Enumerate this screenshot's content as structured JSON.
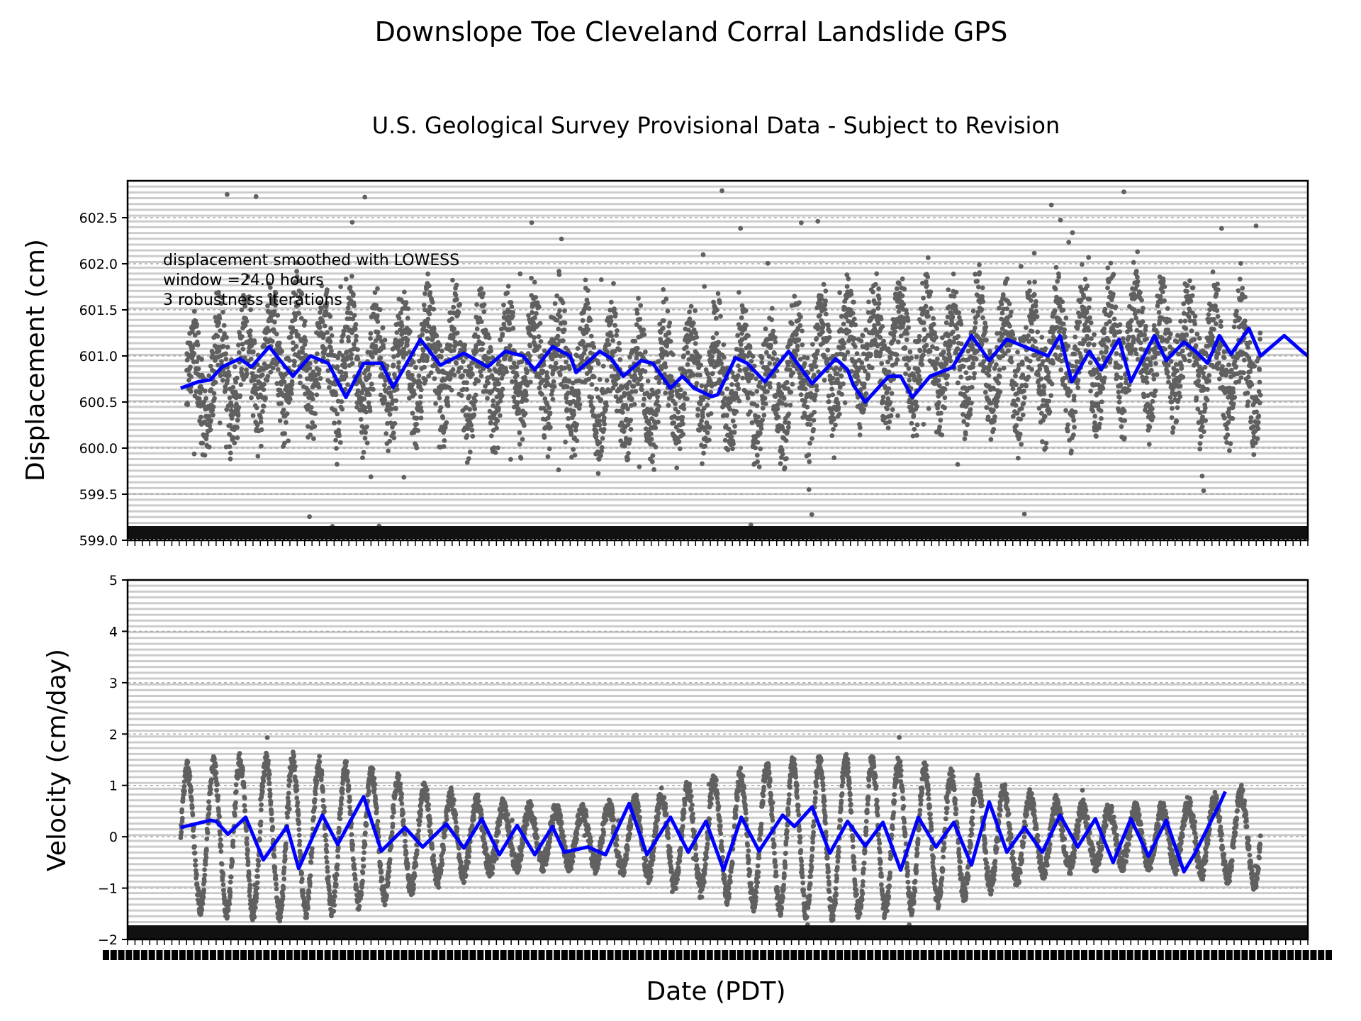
{
  "figure": {
    "title": "Downslope Toe Cleveland Corral Landslide GPS",
    "subtitle": "U.S. Geological Survey Provisional Data - Subject to Revision",
    "xlabel": "Date (PDT)"
  },
  "chart_data": [
    {
      "type": "scatter",
      "ylabel": "Displacement (cm)",
      "ylim": [
        599.0,
        602.9
      ],
      "yticks": [
        599.0,
        599.5,
        600.0,
        600.5,
        601.0,
        601.5,
        602.0,
        602.5
      ],
      "ytick_labels": [
        "599.0",
        "599.5",
        "600.0",
        "600.5",
        "601.0",
        "601.5",
        "602.0",
        "602.5"
      ],
      "grid": true,
      "annotation": [
        "displacement smoothed with LOWESS",
        "window =24.0 hours",
        "3 robustness iterations"
      ],
      "series": [
        {
          "kind": "points",
          "color": "#606060",
          "x_range": [
            0.05,
            0.96
          ],
          "baseline": [
            [
              0.05,
              600.65
            ],
            [
              0.1,
              600.9
            ],
            [
              0.15,
              601.0
            ],
            [
              0.2,
              600.8
            ],
            [
              0.25,
              600.95
            ],
            [
              0.3,
              600.85
            ],
            [
              0.35,
              600.95
            ],
            [
              0.4,
              600.75
            ],
            [
              0.45,
              600.7
            ],
            [
              0.5,
              600.75
            ],
            [
              0.55,
              600.65
            ],
            [
              0.58,
              600.9
            ],
            [
              0.62,
              601.05
            ],
            [
              0.7,
              601.05
            ],
            [
              0.75,
              600.95
            ],
            [
              0.8,
              601.0
            ],
            [
              0.85,
              601.1
            ],
            [
              0.9,
              601.05
            ],
            [
              0.96,
              600.85
            ]
          ],
          "amplitude": 0.55,
          "oscillations": 41
        },
        {
          "kind": "line",
          "color": "#0000ff",
          "points": [
            [
              0.045,
              600.65
            ],
            [
              0.06,
              600.72
            ],
            [
              0.07,
              600.74
            ],
            [
              0.08,
              600.88
            ],
            [
              0.095,
              600.97
            ],
            [
              0.105,
              600.88
            ],
            [
              0.12,
              601.1
            ],
            [
              0.14,
              600.78
            ],
            [
              0.155,
              601.0
            ],
            [
              0.17,
              600.92
            ],
            [
              0.185,
              600.55
            ],
            [
              0.2,
              600.92
            ],
            [
              0.215,
              600.92
            ],
            [
              0.225,
              600.66
            ],
            [
              0.248,
              601.18
            ],
            [
              0.265,
              600.9
            ],
            [
              0.285,
              601.03
            ],
            [
              0.305,
              600.88
            ],
            [
              0.32,
              601.05
            ],
            [
              0.335,
              601.0
            ],
            [
              0.345,
              600.85
            ],
            [
              0.36,
              601.1
            ],
            [
              0.375,
              601.0
            ],
            [
              0.38,
              600.82
            ],
            [
              0.4,
              601.05
            ],
            [
              0.41,
              600.97
            ],
            [
              0.42,
              600.78
            ],
            [
              0.435,
              600.95
            ],
            [
              0.445,
              600.92
            ],
            [
              0.46,
              600.65
            ],
            [
              0.47,
              600.78
            ],
            [
              0.48,
              600.65
            ],
            [
              0.495,
              600.56
            ],
            [
              0.5,
              600.58
            ],
            [
              0.515,
              600.98
            ],
            [
              0.525,
              600.92
            ],
            [
              0.54,
              600.72
            ],
            [
              0.56,
              601.05
            ],
            [
              0.58,
              600.7
            ],
            [
              0.6,
              600.97
            ],
            [
              0.61,
              600.85
            ],
            [
              0.615,
              600.68
            ],
            [
              0.625,
              600.5
            ],
            [
              0.645,
              600.78
            ],
            [
              0.655,
              600.78
            ],
            [
              0.665,
              600.55
            ],
            [
              0.68,
              600.78
            ],
            [
              0.69,
              600.83
            ],
            [
              0.7,
              600.88
            ],
            [
              0.7,
              600.9
            ],
            [
              0.715,
              601.22
            ],
            [
              0.73,
              600.95
            ],
            [
              0.745,
              601.18
            ],
            [
              0.76,
              601.1
            ],
            [
              0.78,
              601.0
            ],
            [
              0.79,
              601.22
            ],
            [
              0.8,
              600.72
            ],
            [
              0.815,
              601.05
            ],
            [
              0.825,
              600.85
            ],
            [
              0.84,
              601.18
            ],
            [
              0.85,
              600.72
            ],
            [
              0.87,
              601.22
            ],
            [
              0.88,
              600.95
            ],
            [
              0.895,
              601.15
            ],
            [
              0.905,
              601.05
            ],
            [
              0.915,
              600.92
            ],
            [
              0.925,
              601.22
            ],
            [
              0.935,
              601.02
            ],
            [
              0.95,
              601.3
            ],
            [
              0.96,
              601.0
            ],
            [
              0.98,
              601.22
            ],
            [
              0.995,
              601.05
            ],
            [
              1.0,
              601.0
            ]
          ]
        }
      ]
    },
    {
      "type": "scatter",
      "ylabel": "Velocity (cm/day)",
      "ylim": [
        -2,
        5
      ],
      "yticks": [
        -2,
        -1,
        0,
        1,
        2,
        3,
        4,
        5
      ],
      "ytick_labels": [
        "−2",
        "−1",
        "0",
        "1",
        "2",
        "3",
        "4",
        "5"
      ],
      "grid": true,
      "series": [
        {
          "kind": "points",
          "color": "#606060",
          "x_range": [
            0.045,
            0.96
          ],
          "oscillations": 41,
          "amplitude": 1.25,
          "center": 0.0
        },
        {
          "kind": "line",
          "color": "#0000ff",
          "points": [
            [
              0.045,
              0.18
            ],
            [
              0.07,
              0.32
            ],
            [
              0.075,
              0.3
            ],
            [
              0.085,
              0.05
            ],
            [
              0.1,
              0.38
            ],
            [
              0.115,
              -0.45
            ],
            [
              0.135,
              0.2
            ],
            [
              0.145,
              -0.62
            ],
            [
              0.165,
              0.42
            ],
            [
              0.178,
              -0.15
            ],
            [
              0.2,
              0.78
            ],
            [
              0.215,
              -0.28
            ],
            [
              0.235,
              0.18
            ],
            [
              0.25,
              -0.2
            ],
            [
              0.27,
              0.25
            ],
            [
              0.285,
              -0.22
            ],
            [
              0.3,
              0.35
            ],
            [
              0.315,
              -0.35
            ],
            [
              0.33,
              0.22
            ],
            [
              0.345,
              -0.35
            ],
            [
              0.36,
              0.2
            ],
            [
              0.37,
              -0.3
            ],
            [
              0.39,
              -0.2
            ],
            [
              0.405,
              -0.35
            ],
            [
              0.425,
              0.65
            ],
            [
              0.44,
              -0.35
            ],
            [
              0.46,
              0.38
            ],
            [
              0.475,
              -0.3
            ],
            [
              0.49,
              0.3
            ],
            [
              0.505,
              -0.65
            ],
            [
              0.52,
              0.38
            ],
            [
              0.535,
              -0.28
            ],
            [
              0.555,
              0.42
            ],
            [
              0.565,
              0.2
            ],
            [
              0.58,
              0.58
            ],
            [
              0.595,
              -0.32
            ],
            [
              0.61,
              0.3
            ],
            [
              0.625,
              -0.18
            ],
            [
              0.64,
              0.28
            ],
            [
              0.655,
              -0.65
            ],
            [
              0.67,
              0.38
            ],
            [
              0.685,
              -0.2
            ],
            [
              0.7,
              0.28
            ],
            [
              0.715,
              -0.55
            ],
            [
              0.73,
              0.68
            ],
            [
              0.745,
              -0.3
            ],
            [
              0.76,
              0.18
            ],
            [
              0.775,
              -0.3
            ],
            [
              0.79,
              0.42
            ],
            [
              0.805,
              -0.2
            ],
            [
              0.82,
              0.35
            ],
            [
              0.835,
              -0.5
            ],
            [
              0.85,
              0.35
            ],
            [
              0.865,
              -0.38
            ],
            [
              0.88,
              0.32
            ],
            [
              0.895,
              -0.68
            ],
            [
              0.905,
              -0.3
            ],
            [
              0.92,
              0.4
            ],
            [
              0.925,
              0.62
            ],
            [
              0.93,
              0.88
            ]
          ]
        }
      ]
    }
  ],
  "colors": {
    "points": "#606060",
    "smooth": "#0000ff",
    "grid": "#cccccc",
    "band": "#111111"
  }
}
